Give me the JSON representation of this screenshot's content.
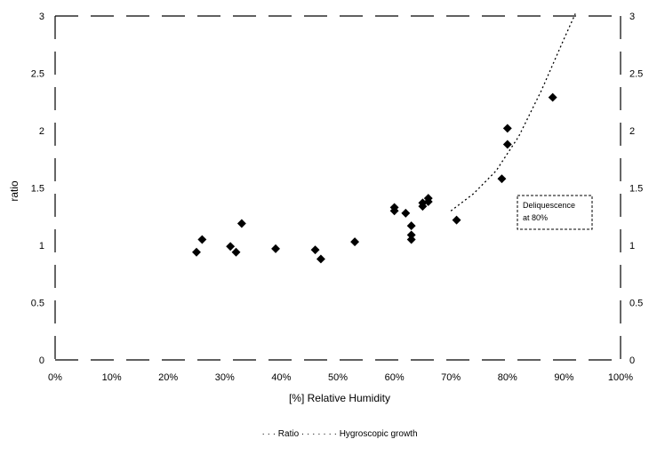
{
  "chart_data": {
    "type": "scatter",
    "title": "",
    "xlabel": "[%] Relative Humidity",
    "ylabel": "ratio",
    "xlim": [
      0,
      100
    ],
    "ylim": [
      0,
      3
    ],
    "y2lim": [
      0,
      3
    ],
    "x_ticks": [
      "0%",
      "10%",
      "20%",
      "30%",
      "40%",
      "50%",
      "60%",
      "70%",
      "80%",
      "90%",
      "100%"
    ],
    "y_ticks": [
      "0",
      "0.5",
      "1",
      "1.5",
      "2",
      "2.5",
      "3"
    ],
    "y2_ticks": [
      "0",
      "0.5",
      "1",
      "1.5",
      "2",
      "2.5",
      "3"
    ],
    "grid": false,
    "legend_position": "bottom",
    "legend_text": "  ·   ·  ·  Ratio ·  ·  ·  ·  ·  ·  ·  Hygroscopic growth",
    "series": [
      {
        "values_xy": [
          [
            25,
            0.94
          ],
          [
            26,
            1.05
          ],
          [
            31,
            0.99
          ],
          [
            32,
            0.94
          ],
          [
            33,
            1.19
          ],
          [
            39,
            0.97
          ],
          [
            46,
            0.96
          ],
          [
            47,
            0.88
          ],
          [
            53,
            1.03
          ],
          [
            60,
            1.33
          ],
          [
            60,
            1.3
          ],
          [
            62,
            1.28
          ],
          [
            63,
            1.17
          ],
          [
            63,
            1.09
          ],
          [
            63,
            1.05
          ],
          [
            65,
            1.34
          ],
          [
            65,
            1.37
          ],
          [
            66,
            1.41
          ],
          [
            66,
            1.38
          ],
          [
            71,
            1.22
          ],
          [
            79,
            1.58
          ],
          [
            80,
            2.02
          ],
          [
            80,
            1.88
          ],
          [
            88,
            2.29
          ]
        ]
      }
    ],
    "fit_curve": {
      "style": "dotted",
      "points": [
        [
          70,
          1.3
        ],
        [
          74,
          1.45
        ],
        [
          78,
          1.65
        ],
        [
          82,
          1.95
        ],
        [
          86,
          2.35
        ],
        [
          90,
          2.8
        ],
        [
          92,
          3.02
        ]
      ]
    },
    "annotation": {
      "lines": [
        "Deliquescence",
        "at 80%"
      ]
    }
  }
}
